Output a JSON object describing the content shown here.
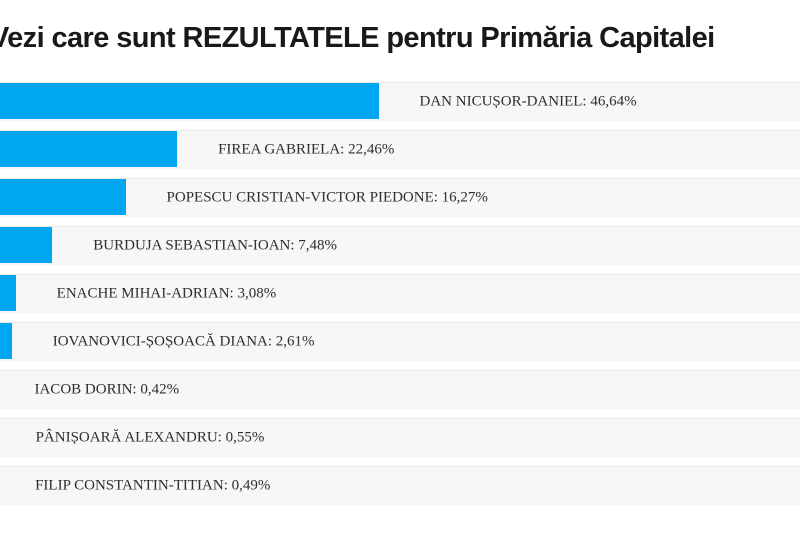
{
  "page": {
    "title": "Vezi care sunt REZULTATELE pentru Primăria Capitalei"
  },
  "chart_data": {
    "type": "bar",
    "orientation": "horizontal",
    "title": "Vezi care sunt REZULTATELE pentru Primăria Capitalei",
    "categories": [
      "DAN NICUȘOR-DANIEL",
      "FIREA GABRIELA",
      "POPESCU CRISTIAN-VICTOR PIEDONE",
      "BURDUJA SEBASTIAN-IOAN",
      "ENACHE MIHAI-ADRIAN",
      "IOVANOVICI-ȘOȘOACĂ DIANA",
      "IACOB DORIN",
      "PÂNIȘOARĂ ALEXANDRU",
      "FILIP CONSTANTIN-TITIAN"
    ],
    "values": [
      46.64,
      22.46,
      16.27,
      7.48,
      3.08,
      2.61,
      0.42,
      0.55,
      0.49
    ],
    "value_labels": [
      "46,64%",
      "22,46%",
      "16,27%",
      "7,48%",
      "3,08%",
      "2,61%",
      "0,42%",
      "0,55%",
      "0,49%"
    ],
    "labels": [
      "DAN NICUȘOR-DANIEL: 46,64%",
      "FIREA GABRIELA: 22,46%",
      "POPESCU CRISTIAN-VICTOR PIEDONE: 16,27%",
      "BURDUJA SEBASTIAN-IOAN: 7,48%",
      "ENACHE MIHAI-ADRIAN: 3,08%",
      "IOVANOVICI-ȘOȘOACĂ DIANA: 2,61%",
      "IACOB DORIN: 0,42%",
      "PÂNIȘOARĂ ALEXANDRU: 0,55%",
      "FILIP CONSTANTIN-TITIAN: 0,49%"
    ],
    "xlim": [
      0,
      100
    ],
    "grid": false,
    "legend": false,
    "bar_color": "#00a7f0",
    "row_background": "#f7f7f7",
    "row_border_color": "#e8e8e8",
    "label_color": "#2e2e2e",
    "title_color": "#191919"
  }
}
